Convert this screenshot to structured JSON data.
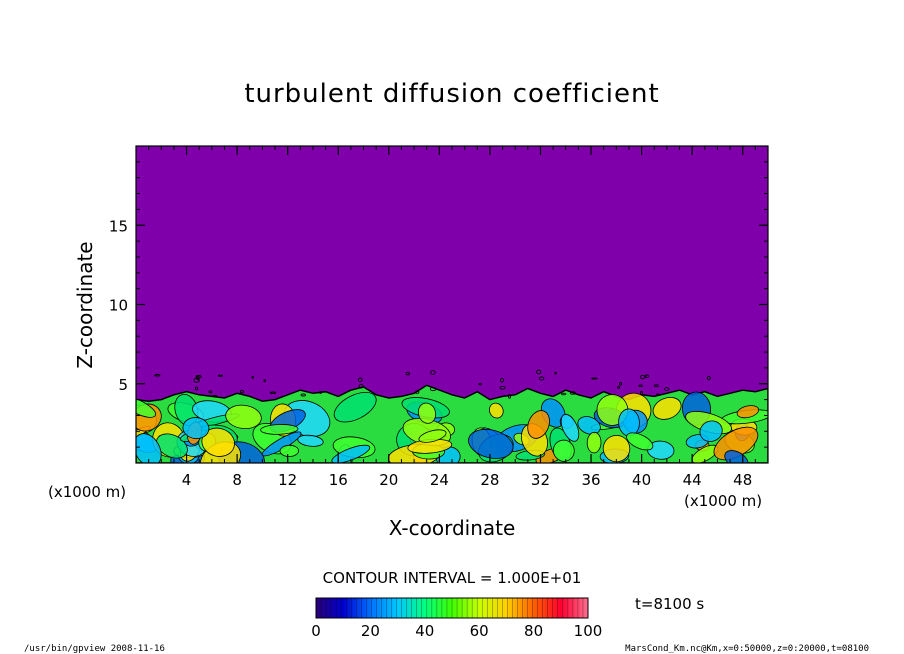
{
  "chart_data": {
    "type": "heatmap",
    "title": "turbulent diffusion coefficient",
    "xlabel": "X-coordinate",
    "ylabel": "Z-coordinate",
    "x_unit": "(x1000 m)",
    "y_unit": "(x1000 m)",
    "xlim": [
      0,
      50
    ],
    "ylim": [
      0,
      20
    ],
    "x_ticks": [
      4,
      8,
      12,
      16,
      20,
      24,
      28,
      32,
      36,
      40,
      44,
      48
    ],
    "y_ticks": [
      5,
      10,
      15
    ],
    "contour_interval": "CONTOUR INTERVAL = 1.000E+01",
    "time_label": "t=8100 s",
    "colorbar": {
      "min": 0,
      "max": 100,
      "ticks": [
        0,
        20,
        40,
        60,
        80,
        100
      ],
      "stops": [
        "#2a0078",
        "#0000d0",
        "#0070ff",
        "#00c8ff",
        "#00ff80",
        "#40ff00",
        "#c8ff00",
        "#ffd000",
        "#ff6000",
        "#ff0030",
        "#ff7090"
      ]
    },
    "background_color": "#7f00aa",
    "boundary_layer_top_km": [
      4.0,
      3.9,
      4.0,
      4.3,
      4.5,
      4.3,
      4.2,
      4.1,
      4.4,
      4.2,
      3.9,
      4.0,
      4.3,
      4.6,
      4.4,
      4.5,
      4.2,
      4.6,
      4.8,
      4.3,
      4.1,
      4.2,
      4.4,
      4.9,
      4.6,
      4.3,
      4.1,
      4.5,
      4.0,
      4.2,
      4.3,
      4.7,
      4.4,
      4.2,
      4.6,
      4.3,
      4.1,
      4.5,
      4.2,
      4.0,
      4.3,
      4.2,
      4.4,
      4.6,
      4.3,
      4.5,
      4.2,
      4.4,
      4.6,
      4.5,
      4.7
    ]
  },
  "footer": {
    "left": "/usr/bin/gpview   2008-11-16",
    "right": "MarsCond_Km.nc@Km,x=0:50000,z=0:20000,t=08100"
  }
}
